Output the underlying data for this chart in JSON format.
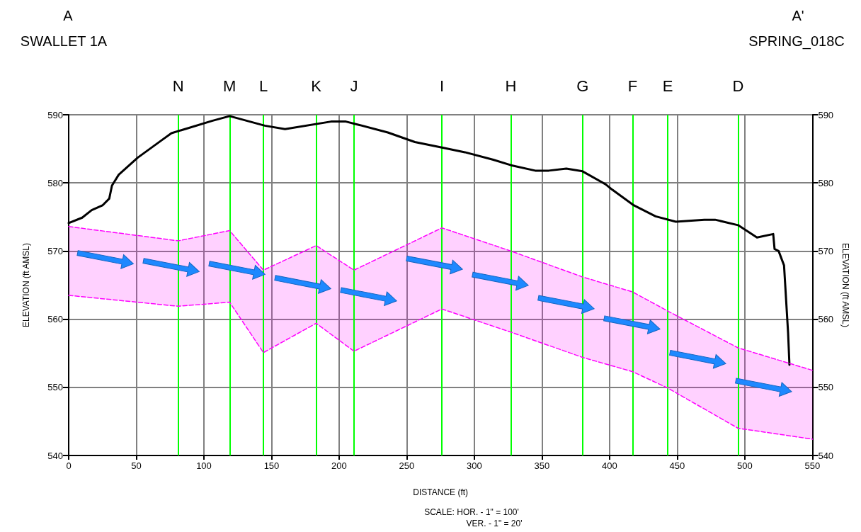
{
  "chart_data": {
    "type": "line",
    "xlabel": "DISTANCE (ft)",
    "ylabel": "ELEVATION (ft AMSL)",
    "y2label": "ELEVATION (ft AMSL)",
    "annotations": [
      "A",
      "SWALLET 1A",
      "A'",
      "SPRING_018C",
      "SCALE: HOR. - 1\" = 100'",
      "VER. - 1\" = 20'"
    ],
    "xlim": [
      0,
      550
    ],
    "xticks": [
      0,
      50,
      100,
      150,
      200,
      250,
      300,
      350,
      400,
      450,
      500,
      550
    ],
    "ylim": [
      540,
      590
    ],
    "yticks": [
      540,
      550,
      560,
      570,
      580,
      590
    ],
    "y2lim": [
      540,
      590
    ],
    "y2ticks": [
      540,
      550,
      560,
      570,
      580,
      590
    ],
    "grid": true,
    "marker": "none",
    "line_style": "solid",
    "series": [
      {
        "type": "line",
        "color": "#000000",
        "x": [
          0,
          10,
          17,
          25,
          30,
          32,
          37,
          51,
          69,
          76,
          86,
          106,
          119,
          145,
          160,
          194,
          205,
          215,
          236,
          256,
          276,
          293,
          314,
          327,
          345,
          355,
          368,
          380,
          397,
          402,
          418,
          434,
          449,
          470,
          478,
          495,
          509,
          521,
          522,
          525,
          529,
          532,
          533
        ],
        "values": [
          574.1,
          574.9,
          576,
          576.7,
          577.7,
          579.6,
          581.2,
          583.7,
          586.3,
          587.3,
          587.9,
          589.1,
          589.8,
          588.4,
          587.9,
          589,
          589,
          588.5,
          587.4,
          586,
          585.2,
          584.5,
          583.4,
          582.6,
          581.8,
          581.8,
          582.1,
          581.7,
          579.8,
          579,
          576.7,
          575.1,
          574.3,
          574.6,
          574.6,
          573.8,
          572,
          572.5,
          570.3,
          570,
          567.9,
          558,
          553.3
        ]
      },
      {
        "type": "area",
        "color": "#ff00ff",
        "line_style": "dashed",
        "x": [
          0,
          81,
          119,
          144,
          183,
          211,
          276,
          327,
          380,
          417,
          443,
          495,
          550
        ],
        "values": [
          573.6,
          571.5,
          573,
          567.2,
          570.8,
          567.2,
          573.4,
          570,
          566.2,
          564,
          561.2,
          555.8,
          552.5
        ]
      },
      {
        "type": "line",
        "color": "#ff00ff",
        "line_style": "dashed",
        "x": [
          0,
          81,
          119,
          144,
          183,
          211,
          276,
          327,
          380,
          417,
          443,
          495,
          550
        ],
        "values": [
          563.5,
          561.9,
          562.5,
          555.1,
          559.4,
          555.3,
          561.5,
          558.1,
          554.4,
          552.3,
          549.9,
          544,
          542.4
        ]
      }
    ],
    "ref_lines": [
      {
        "axis": "x",
        "value": 81,
        "label": "N",
        "color": "#00ff00"
      },
      {
        "axis": "x",
        "value": 119,
        "label": "M",
        "color": "#00ff00"
      },
      {
        "axis": "x",
        "value": 144,
        "label": "L",
        "color": "#00ff00"
      },
      {
        "axis": "x",
        "value": 183,
        "label": "K",
        "color": "#00ff00"
      },
      {
        "axis": "x",
        "value": 211,
        "label": "J",
        "color": "#00ff00"
      },
      {
        "axis": "x",
        "value": 276,
        "label": "I",
        "color": "#00ff00"
      },
      {
        "axis": "x",
        "value": 327,
        "label": "H",
        "color": "#00ff00"
      },
      {
        "axis": "x",
        "value": 380,
        "label": "G",
        "color": "#00ff00"
      },
      {
        "axis": "x",
        "value": 417,
        "label": "F",
        "color": "#00ff00"
      },
      {
        "axis": "x",
        "value": 443,
        "label": "E",
        "color": "#00ff00"
      },
      {
        "axis": "x",
        "value": 495,
        "label": "D",
        "color": "#00ff00"
      }
    ]
  }
}
